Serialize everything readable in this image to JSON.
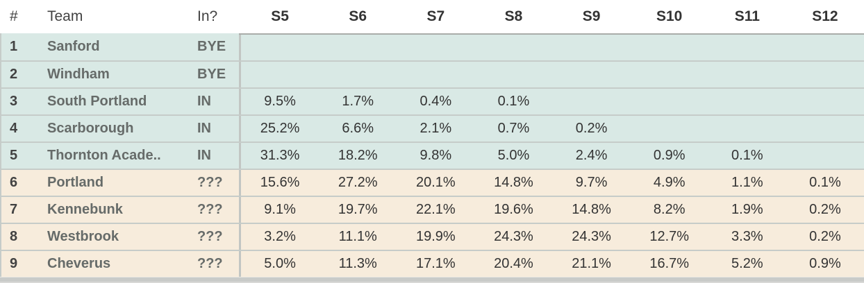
{
  "colors": {
    "row-in-bg": "#d9e9e5",
    "row-maybe-bg": "#f7ecdc",
    "row-separator": "#c6ccc9",
    "region-divider": "#c2c6c3",
    "data-top-border": "#a9aca9",
    "bottom-strip": "#c9cbc9",
    "header-text": "#424242",
    "data-header-text": "#333333",
    "rank-text": "#424242",
    "team-text": "#666b69",
    "value-text": "#333333",
    "page-bg": "#ffffff"
  },
  "chart_data": {
    "type": "table",
    "columns": [
      "#",
      "Team",
      "In?",
      "S5",
      "S6",
      "S7",
      "S8",
      "S9",
      "S10",
      "S11",
      "S12"
    ],
    "rows": [
      {
        "rank": "1",
        "team": "Sanford",
        "status": "BYE",
        "group": "in",
        "values": [
          "",
          "",
          "",
          "",
          "",
          "",
          "",
          ""
        ]
      },
      {
        "rank": "2",
        "team": "Windham",
        "status": "BYE",
        "group": "in",
        "values": [
          "",
          "",
          "",
          "",
          "",
          "",
          "",
          ""
        ]
      },
      {
        "rank": "3",
        "team": "South Portland",
        "status": "IN",
        "group": "in",
        "values": [
          "9.5%",
          "1.7%",
          "0.4%",
          "0.1%",
          "",
          "",
          "",
          ""
        ]
      },
      {
        "rank": "4",
        "team": "Scarborough",
        "status": "IN",
        "group": "in",
        "values": [
          "25.2%",
          "6.6%",
          "2.1%",
          "0.7%",
          "0.2%",
          "",
          "",
          ""
        ]
      },
      {
        "rank": "5",
        "team": "Thornton Acade..",
        "status": "IN",
        "group": "in",
        "values": [
          "31.3%",
          "18.2%",
          "9.8%",
          "5.0%",
          "2.4%",
          "0.9%",
          "0.1%",
          ""
        ]
      },
      {
        "rank": "6",
        "team": "Portland",
        "status": "???",
        "group": "maybe",
        "values": [
          "15.6%",
          "27.2%",
          "20.1%",
          "14.8%",
          "9.7%",
          "4.9%",
          "1.1%",
          "0.1%"
        ]
      },
      {
        "rank": "7",
        "team": "Kennebunk",
        "status": "???",
        "group": "maybe",
        "values": [
          "9.1%",
          "19.7%",
          "22.1%",
          "19.6%",
          "14.8%",
          "8.2%",
          "1.9%",
          "0.2%"
        ]
      },
      {
        "rank": "8",
        "team": "Westbrook",
        "status": "???",
        "group": "maybe",
        "values": [
          "3.2%",
          "11.1%",
          "19.9%",
          "24.3%",
          "24.3%",
          "12.7%",
          "3.3%",
          "0.2%"
        ]
      },
      {
        "rank": "9",
        "team": "Cheverus",
        "status": "???",
        "group": "maybe",
        "values": [
          "5.0%",
          "11.3%",
          "17.1%",
          "20.4%",
          "21.1%",
          "16.7%",
          "5.2%",
          "0.9%"
        ]
      }
    ]
  }
}
